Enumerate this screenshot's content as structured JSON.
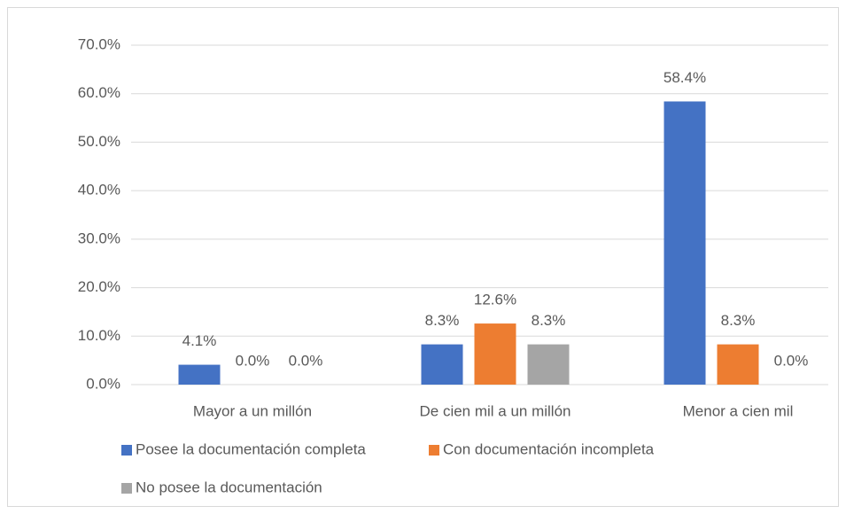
{
  "chart_data": {
    "type": "bar",
    "categories": [
      "Mayor a un millón",
      "De cien mil a un millón",
      "Menor a cien mil"
    ],
    "series": [
      {
        "name": "Posee la documentación completa",
        "color": "#4472c4",
        "values": [
          4.1,
          8.3,
          58.4
        ],
        "value_labels": [
          "4.1%",
          "8.3%",
          "58.4%"
        ]
      },
      {
        "name": "Con documentación incompleta",
        "color": "#ed7d31",
        "values": [
          0.0,
          12.6,
          8.3
        ],
        "value_labels": [
          "0.0%",
          "12.6%",
          "8.3%"
        ]
      },
      {
        "name": "No posee la documentación",
        "color": "#a5a5a5",
        "values": [
          0.0,
          8.3,
          0.0
        ],
        "value_labels": [
          "0.0%",
          "8.3%",
          "0.0%"
        ]
      }
    ],
    "ylim": [
      0,
      70
    ],
    "yticks": [
      {
        "value": 0,
        "label": "0.0%"
      },
      {
        "value": 10,
        "label": "10.0%"
      },
      {
        "value": 20,
        "label": "20.0%"
      },
      {
        "value": 30,
        "label": "30.0%"
      },
      {
        "value": 40,
        "label": "40.0%"
      },
      {
        "value": 50,
        "label": "50.0%"
      },
      {
        "value": 60,
        "label": "60.0%"
      },
      {
        "value": 70,
        "label": "70.0%"
      }
    ],
    "grid": true
  }
}
